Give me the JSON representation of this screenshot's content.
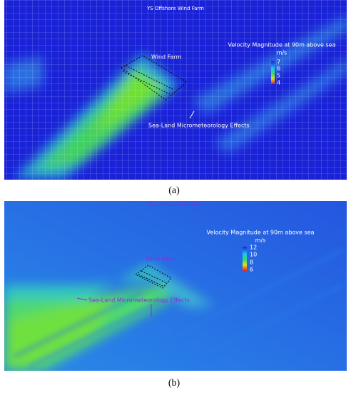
{
  "panels": [
    {
      "title": "YS Offshore Wind Farm",
      "legend": {
        "label": "Velocity Magnitude at 90m above sea",
        "unit": "m/s",
        "ticks": [
          7,
          6,
          5,
          4
        ]
      },
      "annotations": [
        "Wind Farm",
        "Sea-Land Micrometeorology Effects"
      ],
      "caption": "(a)"
    },
    {
      "title": "YS Offshore Wind Farm",
      "legend": {
        "label": "Velocity Magnitude at 90m above sea",
        "unit": "m/s",
        "ticks": [
          12,
          10,
          8,
          6
        ]
      },
      "annotations": [
        "Wind Farm",
        "Sea-Land Micrometeorology Effects"
      ],
      "caption": "(b)"
    }
  ]
}
